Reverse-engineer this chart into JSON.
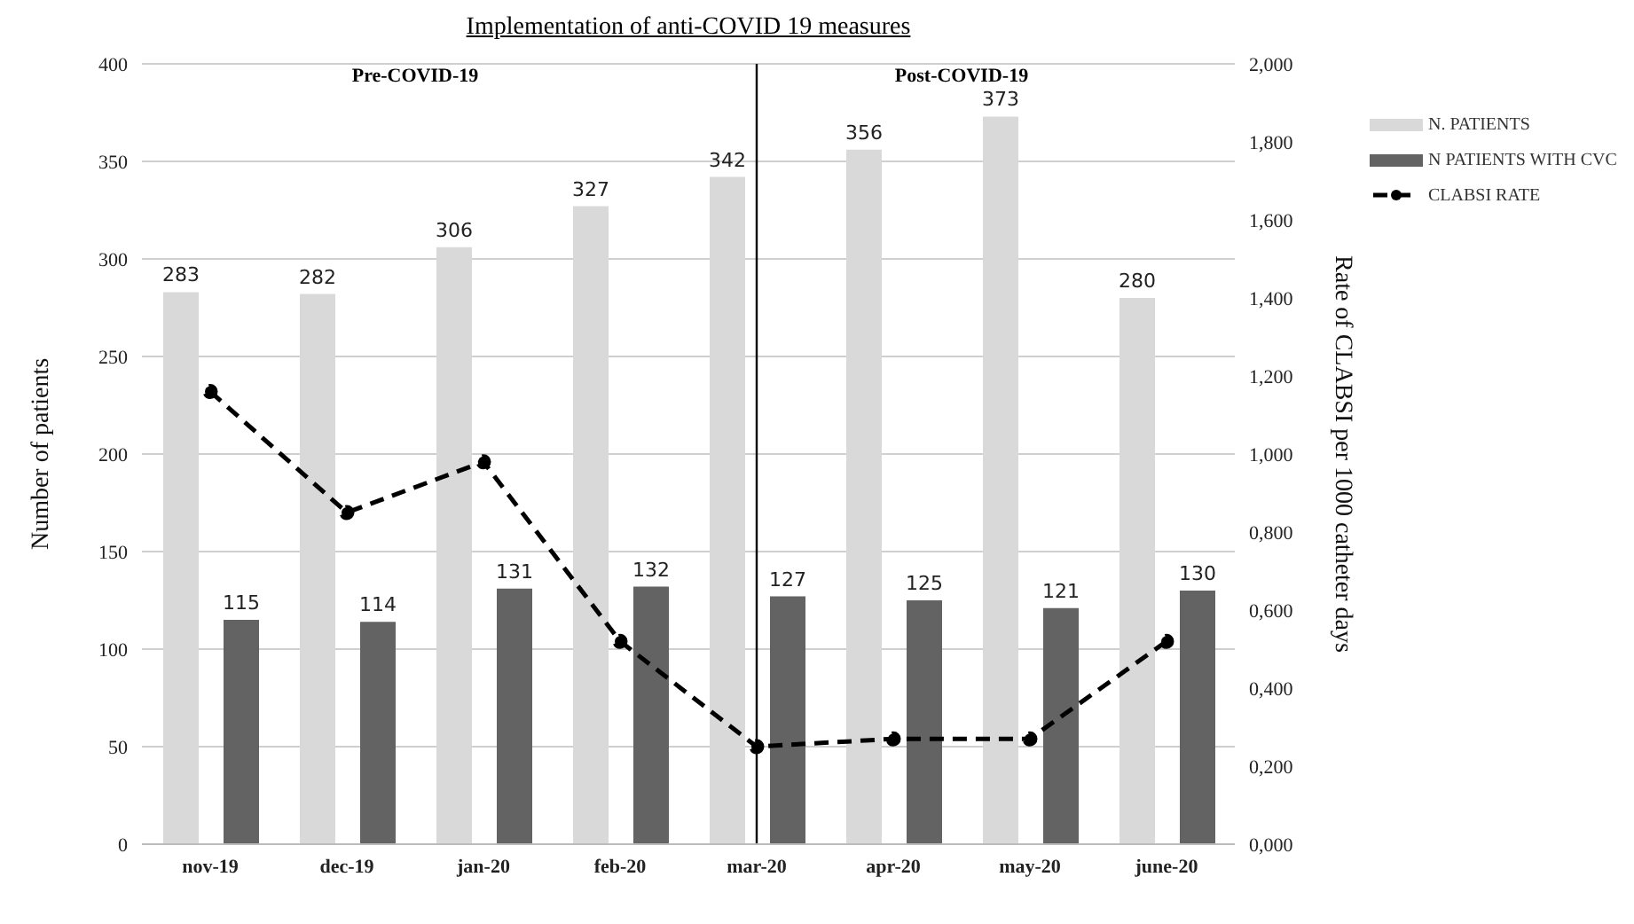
{
  "chart_data": {
    "type": "bar",
    "title": "Implementation of anti-COVID 19 measures",
    "ylabel": "Number of patients",
    "y2label": "Rate of CLABSI per 1000 catheter days",
    "categories": [
      "nov-19",
      "dec-19",
      "jan-20",
      "feb-20",
      "mar-20",
      "apr-20",
      "may-20",
      "june-20"
    ],
    "series": [
      {
        "name": "N. PATIENTS",
        "color": "#d9d9d9",
        "values": [
          283,
          282,
          306,
          327,
          342,
          356,
          373,
          280
        ],
        "value_labels": [
          "283",
          "282",
          "306",
          "327",
          "342",
          "356",
          "373",
          "280"
        ]
      },
      {
        "name": "N PATIENTS WITH CVC",
        "color": "#636363",
        "values": [
          115,
          114,
          131,
          132,
          127,
          125,
          121,
          130
        ],
        "value_labels": [
          "115",
          "114",
          "131",
          "132",
          "127",
          "125",
          "121",
          "130"
        ]
      },
      {
        "name": "CLABSI RATE",
        "type": "line",
        "axis": "y2",
        "color": "#000000",
        "line_style": "dashed",
        "marker": "circle",
        "values": [
          1.16,
          0.85,
          0.98,
          0.52,
          0.25,
          0.27,
          0.27,
          0.52
        ]
      }
    ],
    "ylim": [
      0,
      400
    ],
    "yticks": [
      0,
      50,
      100,
      150,
      200,
      250,
      300,
      350,
      400
    ],
    "y2lim": [
      0,
      2
    ],
    "y2ticks": [
      {
        "value": 0,
        "label": "0,000"
      },
      {
        "value": 0.2,
        "label": "0,200"
      },
      {
        "value": 0.4,
        "label": "0,400"
      },
      {
        "value": 0.6,
        "label": "0,600"
      },
      {
        "value": 0.8,
        "label": "0,800"
      },
      {
        "value": 1,
        "label": "1,000"
      },
      {
        "value": 1.2,
        "label": "1,200"
      },
      {
        "value": 1.4,
        "label": "1,400"
      },
      {
        "value": 1.6,
        "label": "1,600"
      },
      {
        "value": 1.8,
        "label": "1,800"
      },
      {
        "value": 2,
        "label": "2,000"
      }
    ],
    "grid": "y",
    "legend": "top right",
    "ref_lines": [
      {
        "axis": "x",
        "value": "mar-20",
        "color": "#000000"
      }
    ],
    "annotations": [
      "Pre-COVID-19",
      "Post-COVID-19"
    ]
  }
}
